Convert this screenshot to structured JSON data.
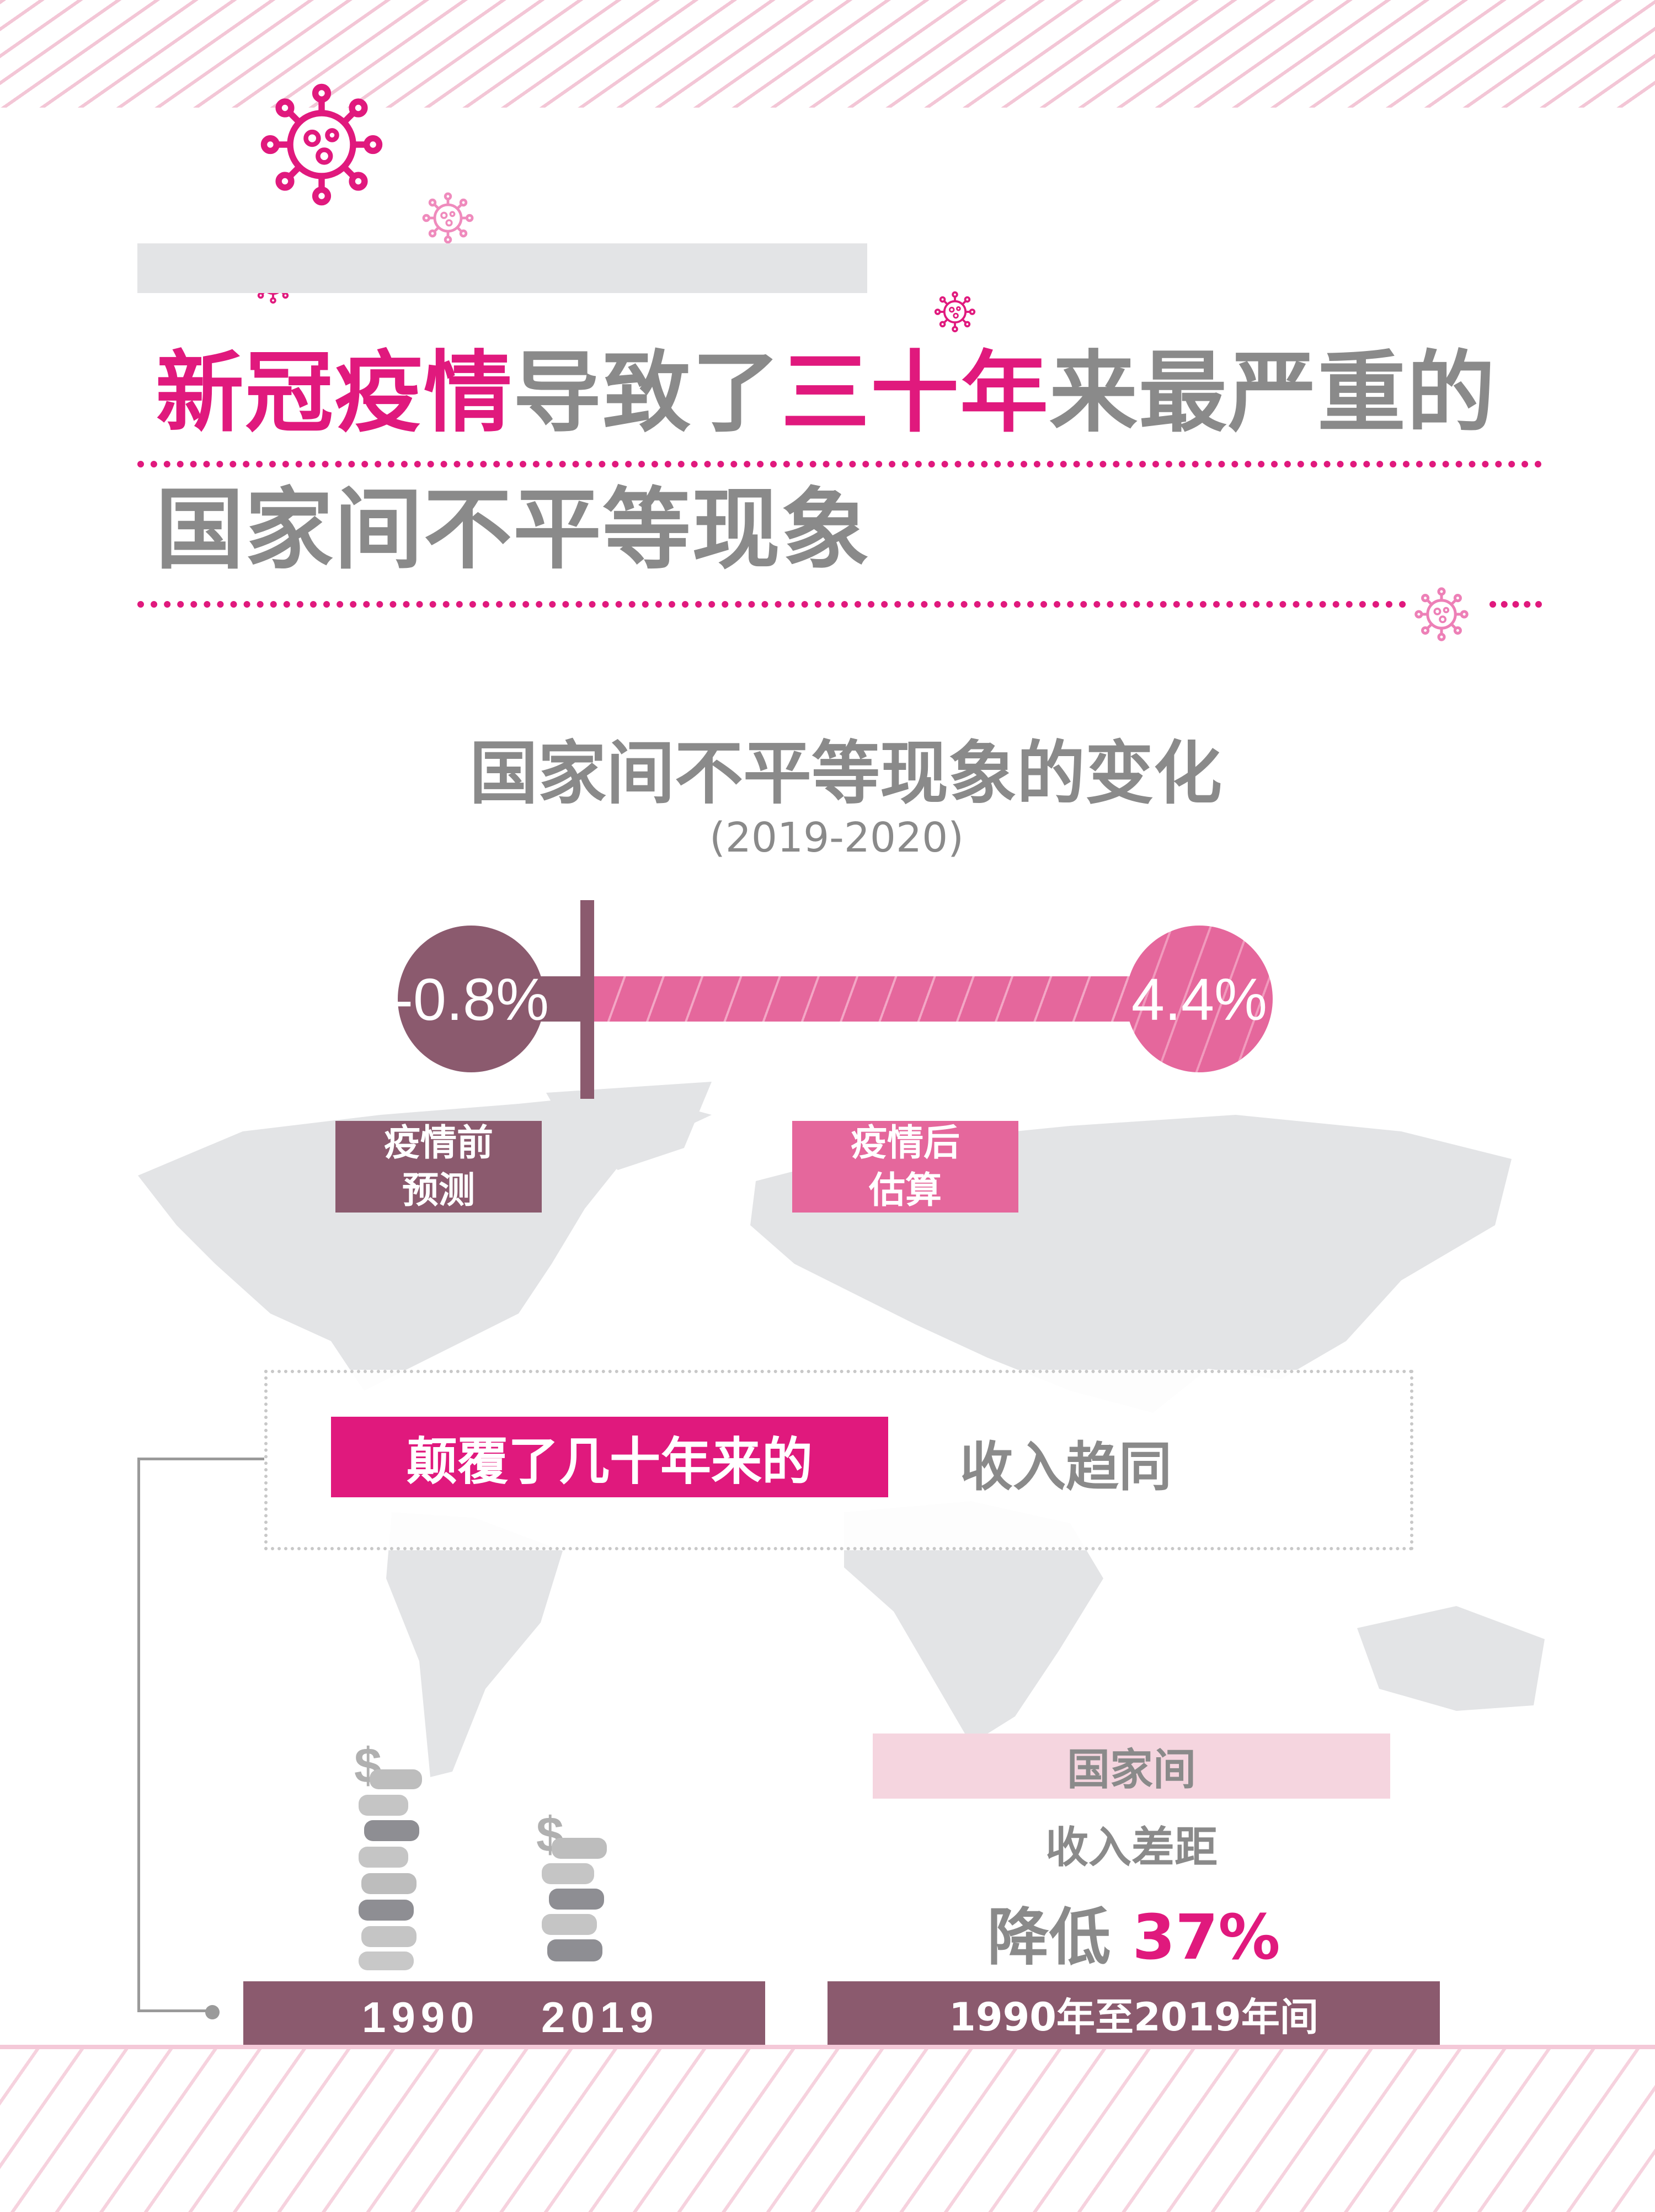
{
  "title": {
    "line1_segments": [
      {
        "text": "新冠疫情",
        "style": "highlight"
      },
      {
        "text": "导致了",
        "style": "gray"
      },
      {
        "text": "三十年",
        "style": "highlight"
      },
      {
        "text": "来最严重的",
        "style": "gray"
      }
    ],
    "line2": "国家间不平等现象"
  },
  "subtitle": "国家间不平等现象的变化",
  "period": "(2019-2020)",
  "comparison": {
    "before": {
      "value": "-0.8%",
      "label_line1": "疫情前",
      "label_line2": "预测"
    },
    "after": {
      "value": "4.4%",
      "label_line1": "疫情后",
      "label_line2": "估算"
    }
  },
  "reversal": {
    "highlight": "颠覆了几十年来的",
    "text": "收入趋同"
  },
  "stacks": {
    "year1": "1990",
    "year2": "2019"
  },
  "gap": {
    "line1": "国家间",
    "line2": "收入差距",
    "reduce_label": "降低",
    "reduce_value": "37%",
    "period": "1990年至2019年间"
  },
  "colors": {
    "highlight": "#e0197d",
    "plum": "#8b5a6e",
    "pink": "#e5679c",
    "light_pink": "#f5d5df",
    "gray_text": "#8a8a8a"
  },
  "icons": [
    "virus-icon"
  ]
}
